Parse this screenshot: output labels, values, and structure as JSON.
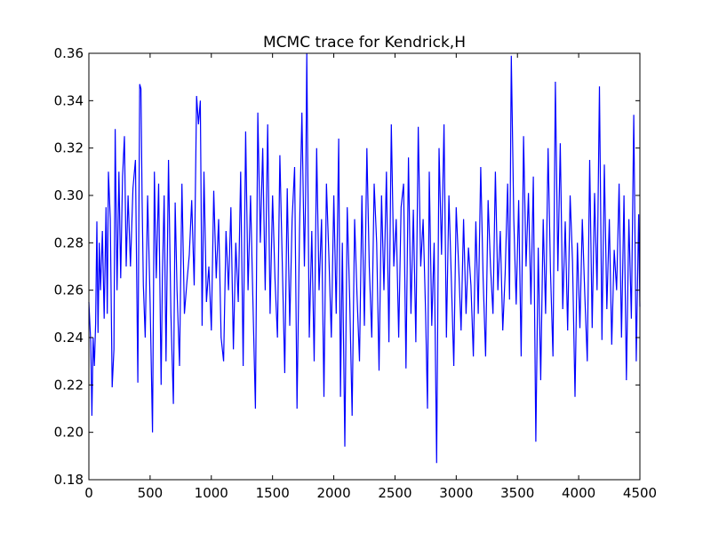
{
  "chart_data": {
    "type": "line",
    "title": "MCMC trace for Kendrick,H",
    "xlabel": "",
    "ylabel": "",
    "xlim": [
      0,
      4500
    ],
    "ylim": [
      0.18,
      0.36
    ],
    "grid": false,
    "line_color": "#0000ff",
    "x_ticks": [
      0,
      500,
      1000,
      1500,
      2000,
      2500,
      3000,
      3500,
      4000,
      4500
    ],
    "x_tick_labels": [
      "0",
      "500",
      "1000",
      "1500",
      "2000",
      "2500",
      "3000",
      "3500",
      "4000",
      "4500"
    ],
    "y_ticks": [
      0.18,
      0.2,
      0.22,
      0.24,
      0.26,
      0.28,
      0.3,
      0.32,
      0.34,
      0.36
    ],
    "y_tick_labels": [
      "0.18",
      "0.20",
      "0.22",
      "0.24",
      "0.26",
      "0.28",
      "0.30",
      "0.32",
      "0.34",
      "0.36"
    ],
    "series": [
      {
        "x": [
          0,
          15,
          25,
          35,
          45,
          55,
          65,
          75,
          85,
          95,
          110,
          125,
          140,
          150,
          160,
          175,
          190,
          205,
          215,
          230,
          245,
          260,
          275,
          290,
          305,
          320,
          340,
          360,
          380,
          400,
          415,
          425,
          435,
          445,
          460,
          480,
          500,
          520,
          535,
          550,
          570,
          590,
          600,
          615,
          630,
          650,
          670,
          690,
          705,
          720,
          740,
          760,
          780,
          800,
          820,
          840,
          860,
          880,
          895,
          910,
          925,
          940,
          960,
          980,
          1000,
          1020,
          1040,
          1060,
          1080,
          1100,
          1120,
          1140,
          1160,
          1180,
          1200,
          1220,
          1240,
          1260,
          1280,
          1300,
          1320,
          1340,
          1360,
          1380,
          1400,
          1420,
          1440,
          1460,
          1480,
          1500,
          1520,
          1540,
          1560,
          1580,
          1600,
          1620,
          1640,
          1660,
          1680,
          1700,
          1720,
          1740,
          1760,
          1770,
          1780,
          1800,
          1820,
          1840,
          1860,
          1880,
          1900,
          1920,
          1940,
          1960,
          1980,
          2000,
          2020,
          2040,
          2055,
          2070,
          2090,
          2110,
          2130,
          2150,
          2170,
          2190,
          2210,
          2230,
          2250,
          2270,
          2290,
          2310,
          2330,
          2350,
          2370,
          2390,
          2410,
          2430,
          2450,
          2470,
          2490,
          2510,
          2530,
          2550,
          2570,
          2590,
          2610,
          2630,
          2650,
          2670,
          2690,
          2710,
          2730,
          2750,
          2765,
          2780,
          2800,
          2820,
          2840,
          2860,
          2880,
          2900,
          2920,
          2940,
          2960,
          2980,
          3000,
          3020,
          3040,
          3060,
          3080,
          3100,
          3120,
          3140,
          3160,
          3180,
          3200,
          3220,
          3240,
          3260,
          3280,
          3300,
          3320,
          3340,
          3360,
          3380,
          3400,
          3420,
          3435,
          3450,
          3470,
          3490,
          3510,
          3530,
          3550,
          3570,
          3590,
          3610,
          3630,
          3650,
          3670,
          3690,
          3710,
          3730,
          3750,
          3770,
          3790,
          3810,
          3830,
          3850,
          3870,
          3890,
          3910,
          3930,
          3950,
          3970,
          3990,
          4010,
          4030,
          4050,
          4070,
          4090,
          4110,
          4130,
          4150,
          4170,
          4190,
          4210,
          4230,
          4250,
          4270,
          4290,
          4310,
          4330,
          4350,
          4370,
          4390,
          4410,
          4430,
          4450,
          4470,
          4490,
          4500
        ],
        "y": [
          0.255,
          0.238,
          0.207,
          0.24,
          0.228,
          0.246,
          0.289,
          0.242,
          0.28,
          0.26,
          0.285,
          0.248,
          0.295,
          0.25,
          0.31,
          0.29,
          0.219,
          0.235,
          0.328,
          0.26,
          0.31,
          0.265,
          0.308,
          0.325,
          0.27,
          0.3,
          0.27,
          0.303,
          0.315,
          0.221,
          0.347,
          0.345,
          0.298,
          0.262,
          0.24,
          0.3,
          0.255,
          0.2,
          0.31,
          0.265,
          0.305,
          0.22,
          0.265,
          0.3,
          0.23,
          0.315,
          0.25,
          0.212,
          0.297,
          0.26,
          0.228,
          0.305,
          0.25,
          0.263,
          0.275,
          0.298,
          0.262,
          0.342,
          0.33,
          0.34,
          0.245,
          0.31,
          0.255,
          0.27,
          0.243,
          0.302,
          0.265,
          0.29,
          0.24,
          0.23,
          0.285,
          0.26,
          0.295,
          0.235,
          0.28,
          0.255,
          0.31,
          0.228,
          0.327,
          0.26,
          0.3,
          0.255,
          0.21,
          0.335,
          0.28,
          0.32,
          0.26,
          0.33,
          0.25,
          0.3,
          0.265,
          0.24,
          0.317,
          0.27,
          0.225,
          0.303,
          0.245,
          0.29,
          0.312,
          0.21,
          0.285,
          0.335,
          0.27,
          0.3,
          0.36,
          0.24,
          0.285,
          0.23,
          0.32,
          0.26,
          0.29,
          0.215,
          0.305,
          0.275,
          0.24,
          0.3,
          0.25,
          0.324,
          0.215,
          0.28,
          0.194,
          0.295,
          0.256,
          0.207,
          0.29,
          0.258,
          0.23,
          0.3,
          0.245,
          0.32,
          0.27,
          0.24,
          0.305,
          0.28,
          0.226,
          0.3,
          0.26,
          0.31,
          0.238,
          0.33,
          0.27,
          0.29,
          0.24,
          0.295,
          0.305,
          0.227,
          0.316,
          0.25,
          0.294,
          0.238,
          0.329,
          0.27,
          0.29,
          0.25,
          0.21,
          0.31,
          0.245,
          0.28,
          0.187,
          0.32,
          0.275,
          0.33,
          0.24,
          0.3,
          0.265,
          0.228,
          0.295,
          0.27,
          0.243,
          0.29,
          0.25,
          0.278,
          0.262,
          0.232,
          0.289,
          0.25,
          0.312,
          0.265,
          0.232,
          0.298,
          0.27,
          0.25,
          0.31,
          0.26,
          0.285,
          0.243,
          0.267,
          0.305,
          0.256,
          0.359,
          0.29,
          0.254,
          0.298,
          0.232,
          0.325,
          0.27,
          0.301,
          0.254,
          0.308,
          0.196,
          0.278,
          0.222,
          0.29,
          0.25,
          0.32,
          0.268,
          0.232,
          0.348,
          0.268,
          0.322,
          0.252,
          0.289,
          0.243,
          0.3,
          0.272,
          0.215,
          0.28,
          0.244,
          0.29,
          0.258,
          0.23,
          0.315,
          0.244,
          0.301,
          0.26,
          0.346,
          0.239,
          0.313,
          0.252,
          0.29,
          0.237,
          0.277,
          0.26,
          0.305,
          0.24,
          0.3,
          0.222,
          0.29,
          0.248,
          0.334,
          0.23,
          0.292,
          0.253
        ]
      }
    ]
  }
}
